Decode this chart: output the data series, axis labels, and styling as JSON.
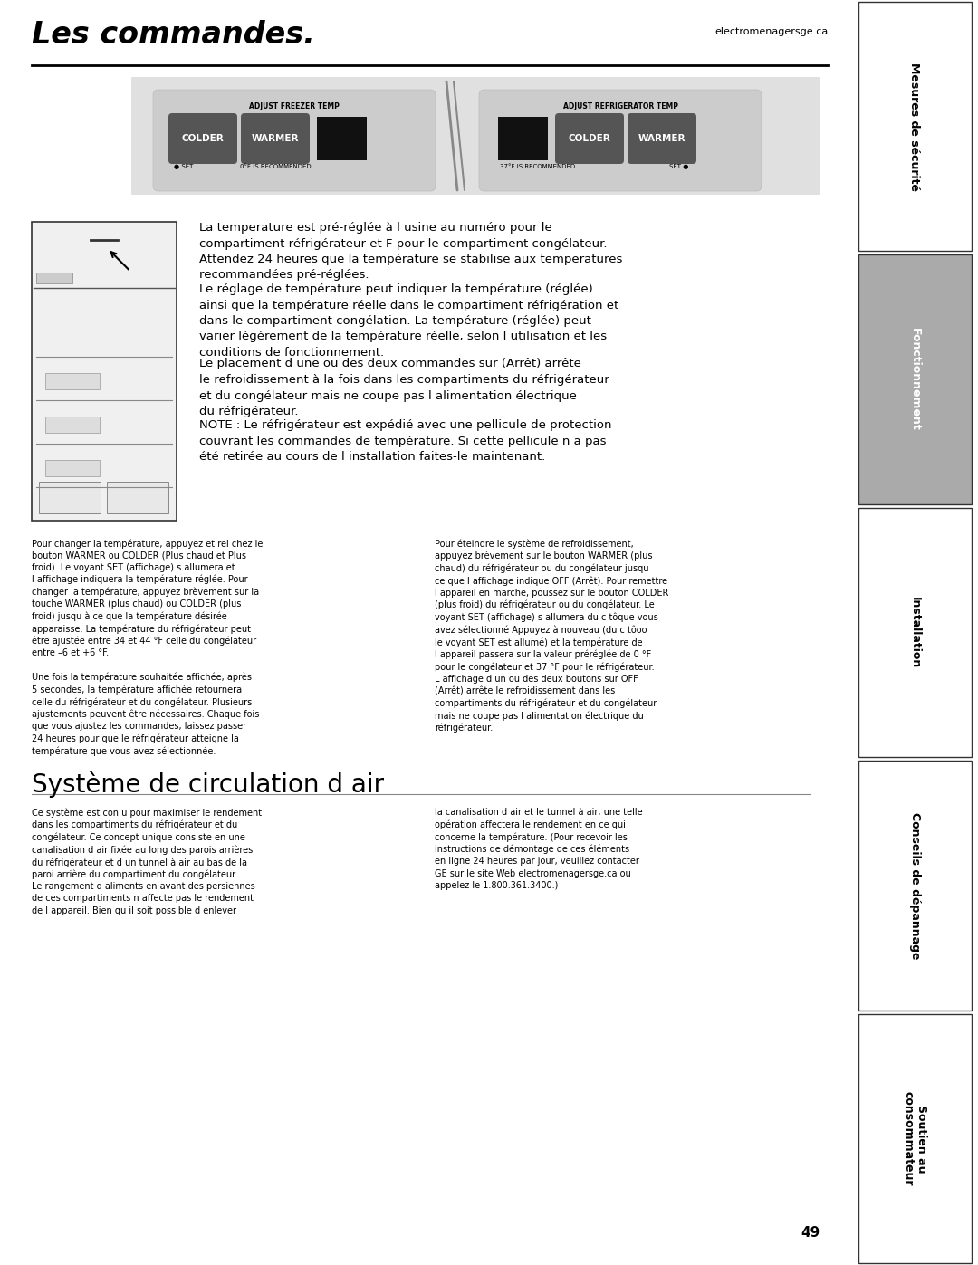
{
  "title": "Les commandes.",
  "website": "electromenagersge.ca",
  "page_number": "49",
  "background_color": "#ffffff",
  "sidebar_tabs": [
    {
      "label": "Mesures de sécurité",
      "bg": "#ffffff",
      "fg": "#000000",
      "active": false
    },
    {
      "label": "Fonctionnement",
      "bg": "#aaaaaa",
      "fg": "#ffffff",
      "active": true
    },
    {
      "label": "Installation",
      "bg": "#ffffff",
      "fg": "#000000",
      "active": false
    },
    {
      "label": "Conseils de dépannage",
      "bg": "#ffffff",
      "fg": "#000000",
      "active": false
    },
    {
      "label": "Soutien au\nconsommateur",
      "bg": "#ffffff",
      "fg": "#000000",
      "active": false
    }
  ],
  "control_panel_bg": "#e0e0e0",
  "control_panel_text_freezer": "ADJUST FREEZER TEMP",
  "control_panel_text_fridge": "ADJUST REFRIGERATOR TEMP",
  "btn_color": "#666666",
  "btn_text_color": "#ffffff",
  "display_color": "#111111",
  "main_paragraphs": [
    "La temperature est pré-réglée à l usine au numéro pour le\ncompartiment réfrigérateur et F pour le compartiment congélateur.\nAttendez 24 heures que la température se stabilise aux temperatures\nrecommandées pré-réglées.",
    "Le réglage de température peut indiquer la température (réglée)\nainsi que la température réelle dans le compartiment réfrigération et\ndans le compartiment congélation. La température (réglée) peut\nvarier légèrement de la température réelle, selon l utilisation et les\nconditions de fonctionnement.",
    "Le placement d une ou des deux commandes sur (Arrêt) arrête\nle refroidissement à la fois dans les compartiments du réfrigérateur\net du congélateur mais ne coupe pas l alimentation électrique\ndu réfrigérateur.",
    "NOTE : Le réfrigérateur est expédié avec une pellicule de protection\ncouvrant les commandes de température. Si cette pellicule n a pas\nété retirée au cours de l installation faites-le maintenant."
  ],
  "small_left_col": "Pour changer la température, appuyez et rel chez le\nbouton WARMER ou COLDER (Plus chaud et Plus\nfroid). Le voyant SET (affichage) s allumera et\nl affichage indiquera la température réglée. Pour\nchanger la température, appuyez brèvement sur la\ntouche WARMER (plus chaud) ou COLDER (plus\nfroid) jusqu à ce que la température désirée\napparaisse. La température du réfrigérateur peut\nêtre ajustée entre 34 et 44 °F celle du congélateur\nentre –6 et +6 °F.\n\nUne fois la température souhaitée affichée, après\n5 secondes, la température affichée retournera\ncelle du réfrigérateur et du congélateur. Plusieurs\najustements peuvent être nécessaires. Chaque fois\nque vous ajustez les commandes, laissez passer\n24 heures pour que le réfrigérateur atteigne la\ntempérature que vous avez sélectionnée.",
  "small_right_col": "Pour éteindre le système de refroidissement,\nappuyez brèvement sur le bouton WARMER (plus\nchaud) du réfrigérateur ou du congélateur jusqu\nce que l affichage indique OFF (Arrêt). Pour remettre\nl appareil en marche, poussez sur le bouton COLDER\n(plus froid) du réfrigérateur ou du congélateur. Le\nvoyant SET (affichage) s allumera du c tôque vous\navez sélectionné Appuyez à nouveau (du c tôoo\nle voyant SET est allumé) et la température de\nl appareil passera sur la valeur préréglée de 0 °F\npour le congélateur et 37 °F pour le réfrigérateur.\nL affichage d un ou des deux boutons sur OFF\n(Arrêt) arrête le refroidissement dans les\ncompartiments du réfrigérateur et du congélateur\nmais ne coupe pas l alimentation électrique du\nréfrigérateur.",
  "section2_title": "Système de circulation d air",
  "section2_left": "Ce système est con u pour maximiser le rendement\ndans les compartiments du réfrigérateur et du\ncongélateur. Ce concept unique consiste en une\ncanalisation d air fixée au long des parois arrières\ndu réfrigérateur et d un tunnel à air au bas de la\nparoi arrière du compartiment du congélateur.\nLe rangement d aliments en avant des persiennes\nde ces compartiments n affecte pas le rendement\nde l appareil. Bien qu il soit possible d enlever",
  "section2_right": "la canalisation d air et le tunnel à air, une telle\nopération affectera le rendement en ce qui\nconcerne la température. (Pour recevoir les\ninstructions de démontage de ces éléments\nen ligne 24 heures par jour, veuillez contacter\nGE sur le site Web electromenagersge.ca ou\nappelez le 1.800.361.3400.)"
}
